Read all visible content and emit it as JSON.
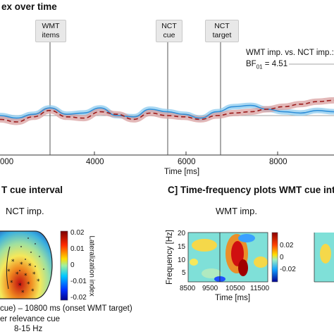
{
  "panelA": {
    "title": "ex over time",
    "events": [
      {
        "label_line1": "WMT",
        "label_line2": "items",
        "x": 3000
      },
      {
        "label_line1": "NCT",
        "label_line2": "cue",
        "x": 5600
      },
      {
        "label_line1": "NCT",
        "label_line2": "target",
        "x": 6800
      }
    ],
    "annotation_line1": "WMT imp. vs. NCT imp.:",
    "annotation_line2": "BF01 = 4.51",
    "xlabel": "Time [ms]",
    "xticks": [
      "000",
      "4000",
      "6000",
      "8000"
    ]
  },
  "panelB": {
    "title": "T cue interval",
    "subtitle": "NCT imp.",
    "colorbar_label": "Lateralization index",
    "colorbar_ticks": [
      "0.02",
      "0.01",
      "0",
      "-0.01",
      "-0.02"
    ],
    "caption_line1": "cue) – 10800 ms (onset WMT target)",
    "caption_line2": "er relevance cue",
    "caption_line3": "8-15 Hz"
  },
  "panelC": {
    "title": "C] Time-frequency plots WMT cue interv",
    "subtitle": "WMT imp.",
    "ylabel": "Frequency [Hz]",
    "yticks": [
      "20",
      "15",
      "10",
      "5"
    ],
    "xlabel": "Time [ms]",
    "xticks": [
      "8500",
      "9500",
      "10500",
      "11500"
    ],
    "colorbar_ticks": [
      "0.02",
      "0",
      "-0.02"
    ]
  },
  "colors": {
    "series_blue": "#2f8fd8",
    "series_blue_band": "#8ccbef",
    "series_red": "#9b1b1b",
    "series_red_band": "#d9a0a0"
  },
  "chart_data": [
    {
      "type": "line",
      "title": "ex over time",
      "xlabel": "Time [ms]",
      "ylabel": "",
      "xlim": [
        2000,
        10000
      ],
      "series": [
        {
          "style": "solid",
          "x": [
            2000,
            2400,
            2800,
            3200,
            3600,
            4000,
            4400,
            4800,
            5200,
            5600,
            6000,
            6400,
            6800,
            7200,
            7600,
            8000,
            8400,
            8800,
            9200,
            9600,
            10000
          ],
          "y": [
            0.0,
            -0.2,
            0.1,
            0.6,
            0.1,
            0.2,
            0.6,
            0.0,
            -0.1,
            0.5,
            0.3,
            0.1,
            -0.2,
            0.3,
            0.7,
            0.8,
            0.5,
            0.3,
            0.2,
            0.4,
            0.3
          ]
        },
        {
          "style": "dashed",
          "x": [
            2000,
            2400,
            2800,
            3200,
            3600,
            4000,
            4400,
            4800,
            5200,
            5600,
            6000,
            6400,
            6800,
            7200,
            7600,
            8000,
            8400,
            8800,
            9200,
            9600,
            10000
          ],
          "y": [
            -0.3,
            -0.5,
            -0.1,
            0.4,
            -0.1,
            -0.2,
            0.3,
            0.1,
            -0.3,
            0.2,
            0.0,
            -0.1,
            -0.3,
            0.0,
            0.2,
            0.3,
            0.5,
            0.7,
            0.9,
            1.1,
            1.2
          ]
        }
      ]
    },
    {
      "type": "heatmap",
      "title": "C] Time-frequency plots WMT cue interv",
      "subtitle": "WMT imp.",
      "xlabel": "Time [ms]",
      "ylabel": "Frequency [Hz]",
      "xlim": [
        8500,
        11500
      ],
      "ylim": [
        2,
        20
      ],
      "clim": [
        -0.02,
        0.02
      ]
    }
  ]
}
